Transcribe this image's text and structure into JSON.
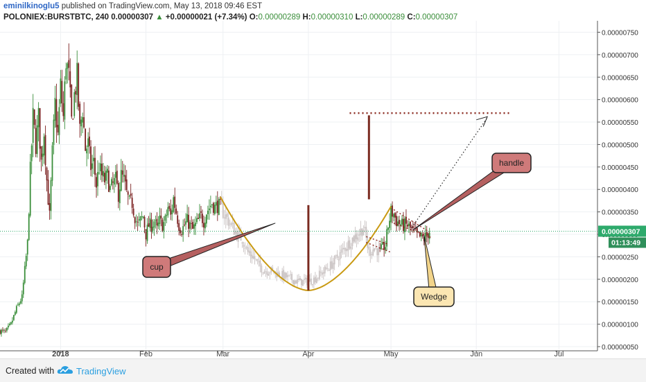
{
  "header": {
    "author": "eminilkinoglu5",
    "published_text": "published on TradingView.com, May 13, 2018 09:46 EST",
    "symbol": "POLONIEX:BURSTBTC, 240",
    "last": "0.00000307",
    "change_arrow": "▲",
    "change": "+0.00000021 (+7.34%)",
    "open_label": "O:",
    "open": "0.00000289",
    "high_label": "H:",
    "high": "0.00000310",
    "low_label": "L:",
    "low": "0.00000289",
    "close_label": "C:",
    "close": "0.00000307"
  },
  "footer": {
    "created_with": "Created with",
    "brand": "TradingView",
    "logo_icon": "tradingview-cloud-icon"
  },
  "colors": {
    "up": "#3a8e3a",
    "down": "#7a1f1f",
    "faded": "#c9c2c2",
    "cup_curve": "#c99a12",
    "annotation_line": "#7a2a20",
    "price_line": "#2eaa6c",
    "callout_fill": "#cf7a7a",
    "wedge_fill": "#fbe6b2",
    "author": "#2d66c5"
  },
  "chart_data": {
    "type": "candlestick",
    "ylim": [
      5e-07,
      7.6e-06
    ],
    "y_ticks": [
      "0.00000750",
      "0.00000700",
      "0.00000650",
      "0.00000600",
      "0.00000550",
      "0.00000500",
      "0.00000450",
      "0.00000400",
      "0.00000350",
      "0.00000300",
      "0.00000250",
      "0.00000200",
      "0.00000150",
      "0.00000100",
      "0.00000050"
    ],
    "y_tick_values": [
      7.5e-06,
      7e-06,
      6.5e-06,
      6e-06,
      5.5e-06,
      5e-06,
      4.5e-06,
      4e-06,
      3.5e-06,
      3e-06,
      2.5e-06,
      2e-06,
      1.5e-06,
      1e-06,
      5e-07
    ],
    "x_ticks": [
      "2018",
      "Feb",
      "Mar",
      "Apr",
      "May",
      "Jun",
      "Jul"
    ],
    "x_tick_days": [
      0,
      31,
      59,
      90,
      120,
      151,
      181
    ],
    "x_range_days": [
      -22,
      195
    ],
    "current_price_label": "0.00000307",
    "current_price": 3.07e-06,
    "countdown_label": "01:13:49",
    "price_path": [
      [
        -22,
        0.85
      ],
      [
        -20,
        0.82
      ],
      [
        -18,
        1.0
      ],
      [
        -16,
        1.35
      ],
      [
        -14,
        1.6
      ],
      [
        -13,
        2.2
      ],
      [
        -12,
        2.8
      ],
      [
        -11,
        4.4
      ],
      [
        -10,
        5.6
      ],
      [
        -9,
        5.0
      ],
      [
        -8,
        5.6
      ],
      [
        -7,
        4.6
      ],
      [
        -6,
        5.3
      ],
      [
        -5,
        4.2
      ],
      [
        -4,
        3.4
      ],
      [
        -3,
        4.8
      ],
      [
        -2,
        5.9
      ],
      [
        -1,
        5.2
      ],
      [
        0,
        6.3
      ],
      [
        1,
        5.6
      ],
      [
        2,
        6.9
      ],
      [
        3,
        6.5
      ],
      [
        4,
        5.5
      ],
      [
        5,
        6.1
      ],
      [
        6,
        6.5
      ],
      [
        7,
        5.3
      ],
      [
        8,
        5.8
      ],
      [
        9,
        4.9
      ],
      [
        10,
        5.0
      ],
      [
        11,
        4.5
      ],
      [
        12,
        4.6
      ],
      [
        13,
        4.1
      ],
      [
        14,
        4.5
      ],
      [
        15,
        4.3
      ],
      [
        16,
        4.2
      ],
      [
        17,
        4.3
      ],
      [
        18,
        4.0
      ],
      [
        19,
        4.1
      ],
      [
        20,
        4.2
      ],
      [
        21,
        3.9
      ],
      [
        22,
        4.3
      ],
      [
        23,
        4.2
      ],
      [
        24,
        3.9
      ],
      [
        25,
        3.7
      ],
      [
        26,
        3.7
      ],
      [
        27,
        3.4
      ],
      [
        28,
        3.2
      ],
      [
        29,
        3.3
      ],
      [
        30,
        3.4
      ],
      [
        31,
        3.0
      ],
      [
        32,
        3.2
      ],
      [
        33,
        3.2
      ],
      [
        34,
        3.3
      ],
      [
        35,
        3.1
      ],
      [
        36,
        3.3
      ],
      [
        37,
        3.2
      ],
      [
        38,
        3.3
      ],
      [
        39,
        3.6
      ],
      [
        40,
        3.4
      ],
      [
        41,
        3.8
      ],
      [
        42,
        3.5
      ],
      [
        43,
        3.2
      ],
      [
        44,
        3.1
      ],
      [
        45,
        3.2
      ],
      [
        46,
        3.3
      ],
      [
        47,
        3.2
      ],
      [
        48,
        3.1
      ],
      [
        49,
        3.2
      ],
      [
        50,
        3.3
      ],
      [
        51,
        3.4
      ],
      [
        52,
        3.3
      ],
      [
        53,
        3.5
      ],
      [
        54,
        3.6
      ],
      [
        55,
        3.7
      ],
      [
        56,
        3.6
      ],
      [
        57,
        3.65
      ],
      [
        58,
        3.6
      ],
      [
        60,
        3.4
      ],
      [
        62,
        3.2
      ],
      [
        64,
        3.0
      ],
      [
        66,
        2.9
      ],
      [
        68,
        2.6
      ],
      [
        70,
        2.5
      ],
      [
        72,
        2.3
      ],
      [
        74,
        2.2
      ],
      [
        76,
        2.2
      ],
      [
        78,
        2.15
      ],
      [
        80,
        2.1
      ],
      [
        82,
        2.05
      ],
      [
        84,
        2.0
      ],
      [
        86,
        1.95
      ],
      [
        88,
        1.95
      ],
      [
        90,
        1.95
      ],
      [
        92,
        2.0
      ],
      [
        94,
        2.1
      ],
      [
        96,
        2.2
      ],
      [
        98,
        2.3
      ],
      [
        100,
        2.45
      ],
      [
        102,
        2.6
      ],
      [
        104,
        2.75
      ],
      [
        106,
        2.9
      ],
      [
        108,
        3.0
      ],
      [
        110,
        3.15
      ],
      [
        111,
        2.9
      ],
      [
        112,
        2.6
      ],
      [
        114,
        2.7
      ],
      [
        116,
        2.6
      ],
      [
        117,
        2.7
      ],
      [
        118,
        2.75
      ],
      [
        119,
        3.2
      ],
      [
        120,
        3.5
      ],
      [
        121,
        3.45
      ],
      [
        122,
        3.3
      ],
      [
        124,
        3.2
      ],
      [
        126,
        3.2
      ],
      [
        128,
        3.05
      ],
      [
        130,
        2.95
      ],
      [
        132,
        2.9
      ],
      [
        134,
        3.07
      ]
    ],
    "faded_range_days": [
      58,
      116
    ],
    "annotations": {
      "callouts": [
        {
          "text": "cup",
          "kind": "red"
        },
        {
          "text": "handle",
          "kind": "red"
        },
        {
          "text": "Wedge",
          "kind": "yellow"
        }
      ],
      "target_price": 5.7e-06,
      "cup_vertical_line": {
        "day": 90,
        "from": 1.75e-06,
        "to": 3.65e-06
      },
      "projection_vertical_line": {
        "day": 112,
        "from": 3.78e-06,
        "to": 5.65e-06
      }
    }
  }
}
